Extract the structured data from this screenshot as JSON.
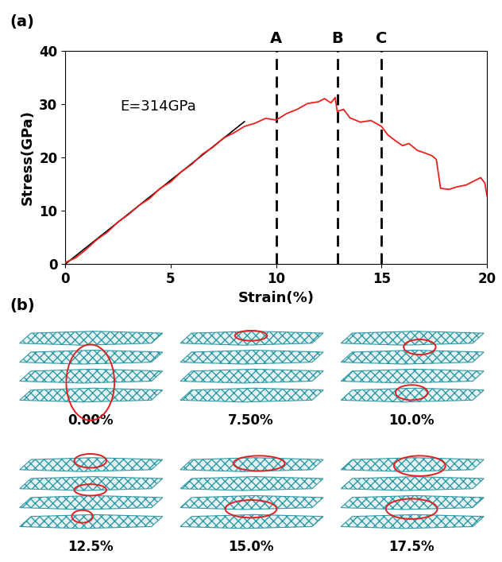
{
  "chart_data": {
    "type": "line",
    "title": "(a)",
    "xlabel": "Strain(%)",
    "ylabel": "Stress(GPa)",
    "xlim": [
      0,
      20
    ],
    "ylim": [
      0,
      40
    ],
    "xticks": [
      0,
      5,
      10,
      15,
      20
    ],
    "yticks": [
      0,
      10,
      20,
      30,
      40
    ],
    "series": [
      {
        "color": "#e8211e",
        "line_style": "solid",
        "x": [
          0,
          0.5,
          1,
          1.5,
          2,
          2.5,
          3,
          3.5,
          4,
          4.5,
          5,
          5.5,
          6,
          6.5,
          7,
          7.5,
          8,
          8.5,
          9,
          9.5,
          10,
          10.5,
          11,
          11.5,
          12,
          12.3,
          12.6,
          12.8,
          12.9,
          13.2,
          13.5,
          14,
          14.5,
          15,
          15.3,
          15.7,
          16,
          16.3,
          16.7,
          17,
          17.4,
          17.6,
          17.8,
          18.2,
          18.6,
          19,
          19.4,
          19.7,
          19.9,
          20
        ],
        "values": [
          0.3,
          1.2,
          2.8,
          4.6,
          6.0,
          7.9,
          9.3,
          11.0,
          12.3,
          14.2,
          15.4,
          17.3,
          18.7,
          20.6,
          21.9,
          23.6,
          24.6,
          25.8,
          26.4,
          27.3,
          27.0,
          28.2,
          29.0,
          30.1,
          30.4,
          31.0,
          30.2,
          31.2,
          28.6,
          29.0,
          27.4,
          26.6,
          26.9,
          25.8,
          24.2,
          23.0,
          22.2,
          22.6,
          21.3,
          20.9,
          20.3,
          19.6,
          14.2,
          14.0,
          14.5,
          14.8,
          15.6,
          16.2,
          15.2,
          12.8
        ]
      },
      {
        "color": "#000000",
        "line_style": "solid",
        "x": [
          0,
          8.5
        ],
        "values": [
          0,
          26.7
        ]
      }
    ],
    "annotations": [
      "E=314GPa"
    ],
    "vlines": [
      {
        "x": 10,
        "label": "A"
      },
      {
        "x": 12.9,
        "label": "B"
      },
      {
        "x": 15,
        "label": "C"
      }
    ]
  },
  "panel_b": {
    "label": "(b)",
    "strains": [
      "0.00%",
      "7.50%",
      "10.0%",
      "12.5%",
      "15.0%",
      "17.5%"
    ]
  }
}
